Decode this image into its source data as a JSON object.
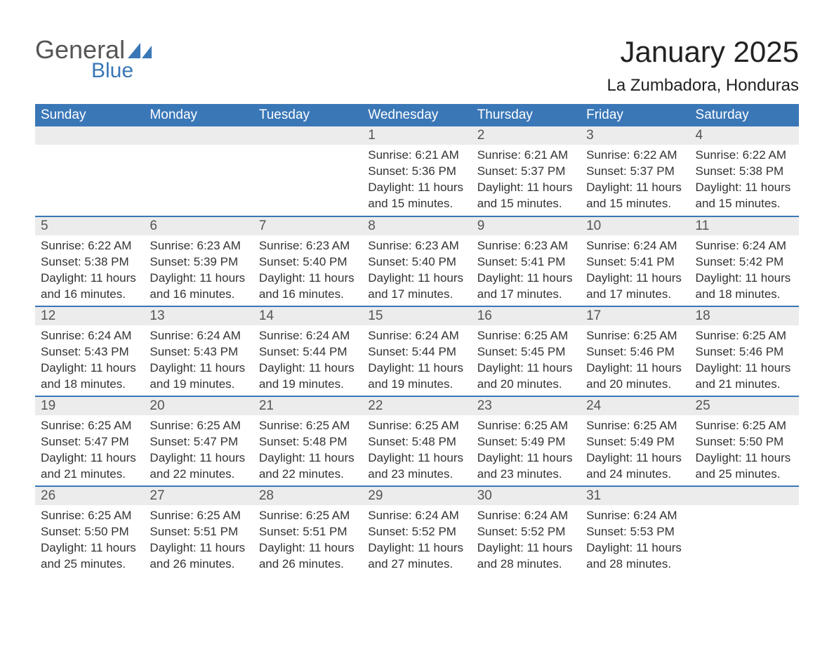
{
  "logo": {
    "general": "General",
    "blue": "Blue",
    "flag_color": "#3a77b7"
  },
  "title": "January 2025",
  "location": "La Zumbadora, Honduras",
  "colors": {
    "header_bg": "#3a77b7",
    "header_text": "#ffffff",
    "daynum_bg": "#ececec",
    "daynum_text": "#555555",
    "body_text": "#333333",
    "row_border": "#3a77b7",
    "page_bg": "#ffffff"
  },
  "typography": {
    "title_fontsize": 42,
    "location_fontsize": 24,
    "header_fontsize": 19,
    "daynum_fontsize": 19,
    "body_fontsize": 17
  },
  "day_labels": [
    "Sunday",
    "Monday",
    "Tuesday",
    "Wednesday",
    "Thursday",
    "Friday",
    "Saturday"
  ],
  "weeks": [
    [
      null,
      null,
      null,
      {
        "n": "1",
        "sr": "6:21 AM",
        "ss": "5:36 PM",
        "dl": "11 hours and 15 minutes."
      },
      {
        "n": "2",
        "sr": "6:21 AM",
        "ss": "5:37 PM",
        "dl": "11 hours and 15 minutes."
      },
      {
        "n": "3",
        "sr": "6:22 AM",
        "ss": "5:37 PM",
        "dl": "11 hours and 15 minutes."
      },
      {
        "n": "4",
        "sr": "6:22 AM",
        "ss": "5:38 PM",
        "dl": "11 hours and 15 minutes."
      }
    ],
    [
      {
        "n": "5",
        "sr": "6:22 AM",
        "ss": "5:38 PM",
        "dl": "11 hours and 16 minutes."
      },
      {
        "n": "6",
        "sr": "6:23 AM",
        "ss": "5:39 PM",
        "dl": "11 hours and 16 minutes."
      },
      {
        "n": "7",
        "sr": "6:23 AM",
        "ss": "5:40 PM",
        "dl": "11 hours and 16 minutes."
      },
      {
        "n": "8",
        "sr": "6:23 AM",
        "ss": "5:40 PM",
        "dl": "11 hours and 17 minutes."
      },
      {
        "n": "9",
        "sr": "6:23 AM",
        "ss": "5:41 PM",
        "dl": "11 hours and 17 minutes."
      },
      {
        "n": "10",
        "sr": "6:24 AM",
        "ss": "5:41 PM",
        "dl": "11 hours and 17 minutes."
      },
      {
        "n": "11",
        "sr": "6:24 AM",
        "ss": "5:42 PM",
        "dl": "11 hours and 18 minutes."
      }
    ],
    [
      {
        "n": "12",
        "sr": "6:24 AM",
        "ss": "5:43 PM",
        "dl": "11 hours and 18 minutes."
      },
      {
        "n": "13",
        "sr": "6:24 AM",
        "ss": "5:43 PM",
        "dl": "11 hours and 19 minutes."
      },
      {
        "n": "14",
        "sr": "6:24 AM",
        "ss": "5:44 PM",
        "dl": "11 hours and 19 minutes."
      },
      {
        "n": "15",
        "sr": "6:24 AM",
        "ss": "5:44 PM",
        "dl": "11 hours and 19 minutes."
      },
      {
        "n": "16",
        "sr": "6:25 AM",
        "ss": "5:45 PM",
        "dl": "11 hours and 20 minutes."
      },
      {
        "n": "17",
        "sr": "6:25 AM",
        "ss": "5:46 PM",
        "dl": "11 hours and 20 minutes."
      },
      {
        "n": "18",
        "sr": "6:25 AM",
        "ss": "5:46 PM",
        "dl": "11 hours and 21 minutes."
      }
    ],
    [
      {
        "n": "19",
        "sr": "6:25 AM",
        "ss": "5:47 PM",
        "dl": "11 hours and 21 minutes."
      },
      {
        "n": "20",
        "sr": "6:25 AM",
        "ss": "5:47 PM",
        "dl": "11 hours and 22 minutes."
      },
      {
        "n": "21",
        "sr": "6:25 AM",
        "ss": "5:48 PM",
        "dl": "11 hours and 22 minutes."
      },
      {
        "n": "22",
        "sr": "6:25 AM",
        "ss": "5:48 PM",
        "dl": "11 hours and 23 minutes."
      },
      {
        "n": "23",
        "sr": "6:25 AM",
        "ss": "5:49 PM",
        "dl": "11 hours and 23 minutes."
      },
      {
        "n": "24",
        "sr": "6:25 AM",
        "ss": "5:49 PM",
        "dl": "11 hours and 24 minutes."
      },
      {
        "n": "25",
        "sr": "6:25 AM",
        "ss": "5:50 PM",
        "dl": "11 hours and 25 minutes."
      }
    ],
    [
      {
        "n": "26",
        "sr": "6:25 AM",
        "ss": "5:50 PM",
        "dl": "11 hours and 25 minutes."
      },
      {
        "n": "27",
        "sr": "6:25 AM",
        "ss": "5:51 PM",
        "dl": "11 hours and 26 minutes."
      },
      {
        "n": "28",
        "sr": "6:25 AM",
        "ss": "5:51 PM",
        "dl": "11 hours and 26 minutes."
      },
      {
        "n": "29",
        "sr": "6:24 AM",
        "ss": "5:52 PM",
        "dl": "11 hours and 27 minutes."
      },
      {
        "n": "30",
        "sr": "6:24 AM",
        "ss": "5:52 PM",
        "dl": "11 hours and 28 minutes."
      },
      {
        "n": "31",
        "sr": "6:24 AM",
        "ss": "5:53 PM",
        "dl": "11 hours and 28 minutes."
      },
      null
    ]
  ],
  "labels": {
    "sunrise": "Sunrise: ",
    "sunset": "Sunset: ",
    "daylight": "Daylight: "
  }
}
